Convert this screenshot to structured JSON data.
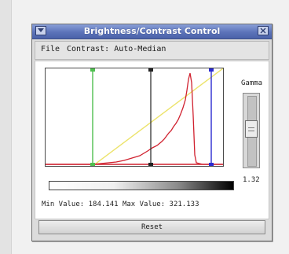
{
  "window": {
    "title": "Brightness/Contrast Control"
  },
  "menubar": {
    "file_label": "File",
    "contrast_label": "Contrast: Auto-Median"
  },
  "gamma": {
    "label": "Gamma",
    "value": "1.32",
    "slider_position": 0.45
  },
  "stats": {
    "text": "Min Value: 184.141 Max Value: 321.133"
  },
  "reset_label": "Reset",
  "colors": {
    "title_bar": "#5c73b9",
    "histogram": "#d0212f",
    "transfer_curve": "#ece36b",
    "min_marker": "#4fbf4f",
    "median_marker": "#222222",
    "max_marker": "#2a2ad0"
  },
  "icons": {
    "window_menu": "chevron-down-icon",
    "window_close": "close-icon"
  }
}
